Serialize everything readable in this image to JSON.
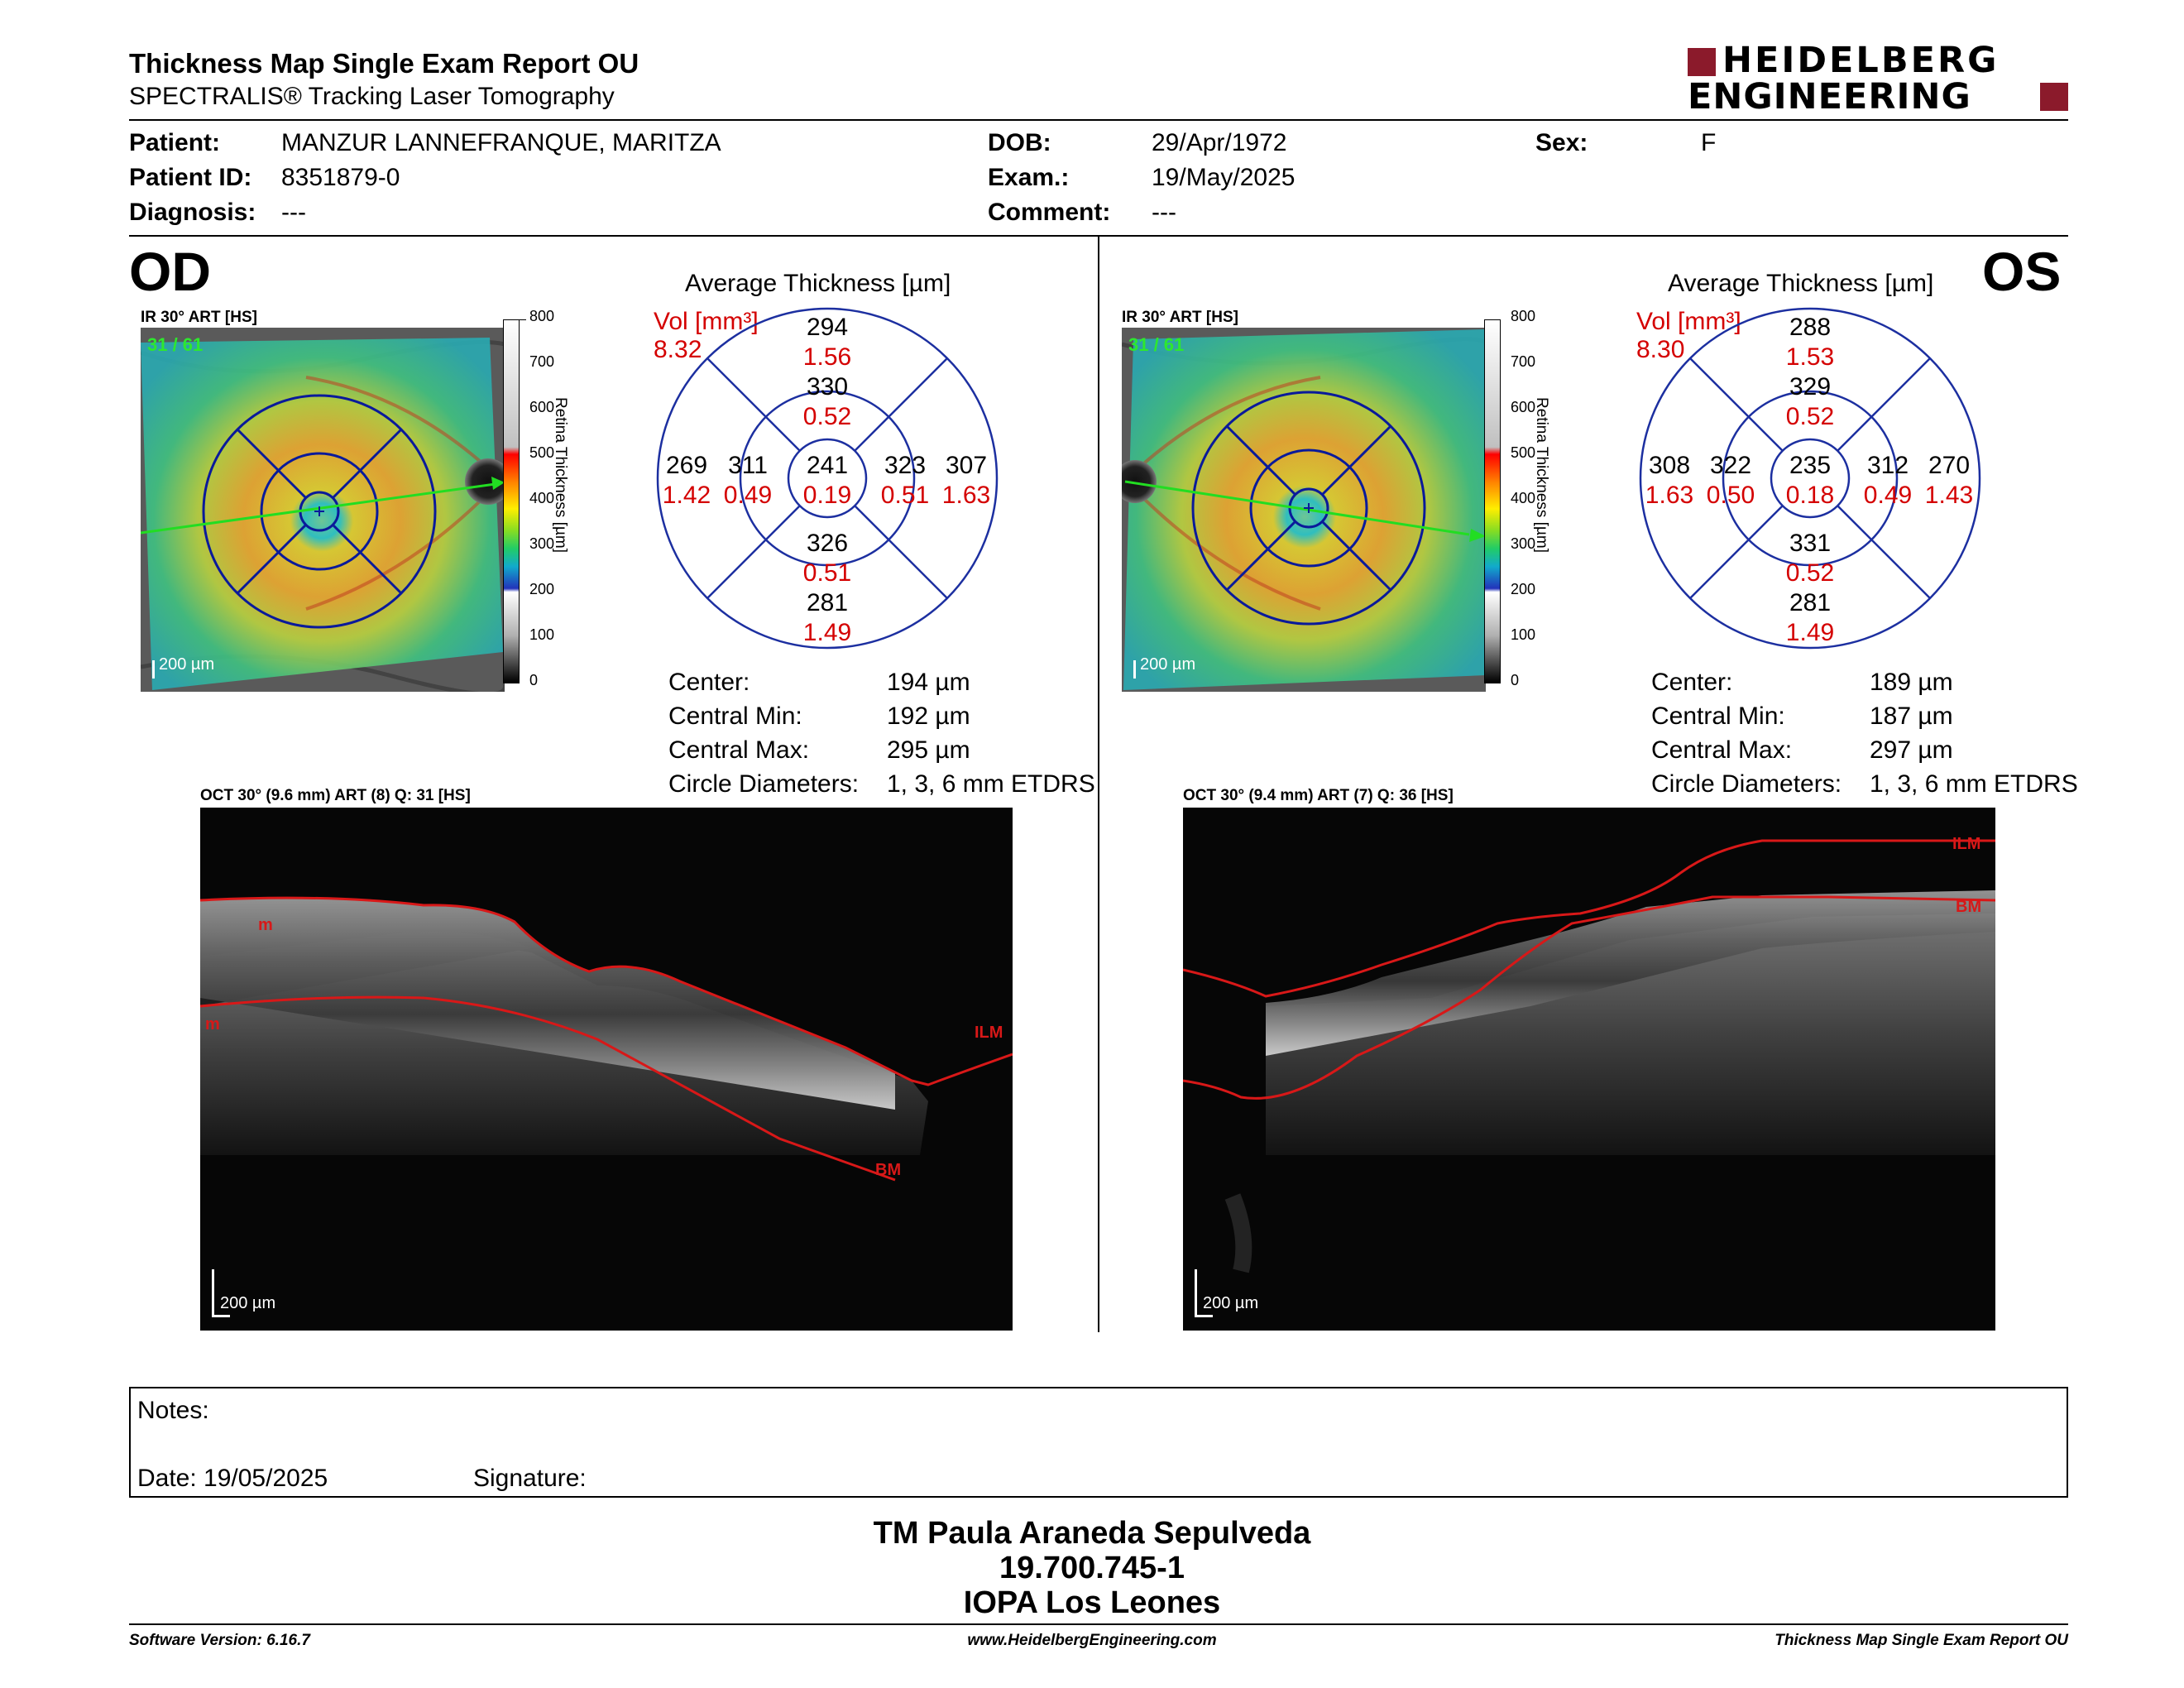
{
  "header": {
    "title": "Thickness Map Single Exam Report OU",
    "subtitle": "SPECTRALIS® Tracking Laser Tomography",
    "logo_line1": "HEIDELBERG",
    "logo_line2": "ENGINEERING"
  },
  "patient": {
    "patient_label": "Patient:",
    "patient_value": "MANZUR LANNEFRANQUE, MARITZA",
    "id_label": "Patient ID:",
    "id_value": "8351879-0",
    "diag_label": "Diagnosis:",
    "diag_value": "---",
    "dob_label": "DOB:",
    "dob_value": "29/Apr/1972",
    "exam_label": "Exam.:",
    "exam_value": "19/May/2025",
    "comment_label": "Comment:",
    "comment_value": "---",
    "sex_label": "Sex:",
    "sex_value": "F"
  },
  "od": {
    "eye": "OD",
    "ir_label": "IR 30° ART [HS]",
    "ir_overlay": "31 / 61",
    "scale": "200 µm",
    "avg_title": "Average Thickness [µm]",
    "vol_label": "Vol [mm³]",
    "vol_total": "8.32",
    "sectors": {
      "outer_top": "294",
      "outer_top_vol": "1.56",
      "inner_top": "330",
      "inner_top_vol": "0.52",
      "outer_left": "269",
      "outer_left_vol": "1.42",
      "inner_left": "311",
      "inner_left_vol": "0.49",
      "center": "241",
      "center_vol": "0.19",
      "inner_right": "323",
      "inner_right_vol": "0.51",
      "outer_right": "307",
      "outer_right_vol": "1.63",
      "inner_bottom": "326",
      "inner_bottom_vol": "0.51",
      "outer_bottom": "281",
      "outer_bottom_vol": "1.49"
    },
    "stats": {
      "center_label": "Center:",
      "center_value": "194 µm",
      "min_label": "Central Min:",
      "min_value": "192 µm",
      "max_label": "Central Max:",
      "max_value": "295 µm",
      "diam_label": "Circle Diameters:",
      "diam_value": "1, 3, 6 mm ETDRS"
    },
    "oct_label": "OCT 30° (9.6 mm) ART (8) Q: 31 [HS]",
    "oct_scale": "200 µm",
    "layer_ilm": "ILM",
    "layer_bm": "BM",
    "layer_m": "m"
  },
  "os": {
    "eye": "OS",
    "ir_label": "IR 30° ART [HS]",
    "ir_overlay": "31 / 61",
    "scale": "200 µm",
    "avg_title": "Average Thickness [µm]",
    "vol_label": "Vol [mm³]",
    "vol_total": "8.30",
    "sectors": {
      "outer_top": "288",
      "outer_top_vol": "1.53",
      "inner_top": "329",
      "inner_top_vol": "0.52",
      "outer_left": "308",
      "outer_left_vol": "1.63",
      "inner_left": "322",
      "inner_left_vol": "0.50",
      "center": "235",
      "center_vol": "0.18",
      "inner_right": "312",
      "inner_right_vol": "0.49",
      "outer_right": "270",
      "outer_right_vol": "1.43",
      "inner_bottom": "331",
      "inner_bottom_vol": "0.52",
      "outer_bottom": "281",
      "outer_bottom_vol": "1.49"
    },
    "stats": {
      "center_label": "Center:",
      "center_value": "189 µm",
      "min_label": "Central Min:",
      "min_value": "187 µm",
      "max_label": "Central Max:",
      "max_value": "297 µm",
      "diam_label": "Circle Diameters:",
      "diam_value": "1, 3, 6 mm ETDRS"
    },
    "oct_label": "OCT 30° (9.4 mm) ART (7) Q: 36 [HS]",
    "oct_scale": "200 µm",
    "layer_ilm": "ILM",
    "layer_bm": "BM"
  },
  "colorbar": {
    "ticks": [
      "800",
      "700",
      "600",
      "500",
      "400",
      "300",
      "200",
      "100",
      "0"
    ],
    "axis_label": "Retina Thickness [µm]"
  },
  "notes": {
    "notes_label": "Notes:",
    "date_label": "Date: 19/05/2025",
    "signature_label": "Signature:"
  },
  "signature_block": {
    "name": "TM Paula Araneda Sepulveda",
    "rut": "19.700.745-1",
    "institution": "IOPA Los Leones"
  },
  "footer": {
    "software": "Software Version: 6.16.7",
    "url": "www.HeidelbergEngineering.com",
    "report": "Thickness Map Single Exam Report OU"
  },
  "colors": {
    "accent_red": "#d40000",
    "logo_red": "#8b1a2b",
    "etdrs_blue": "#1c2fa0",
    "overlay_green": "#2ee82e"
  }
}
